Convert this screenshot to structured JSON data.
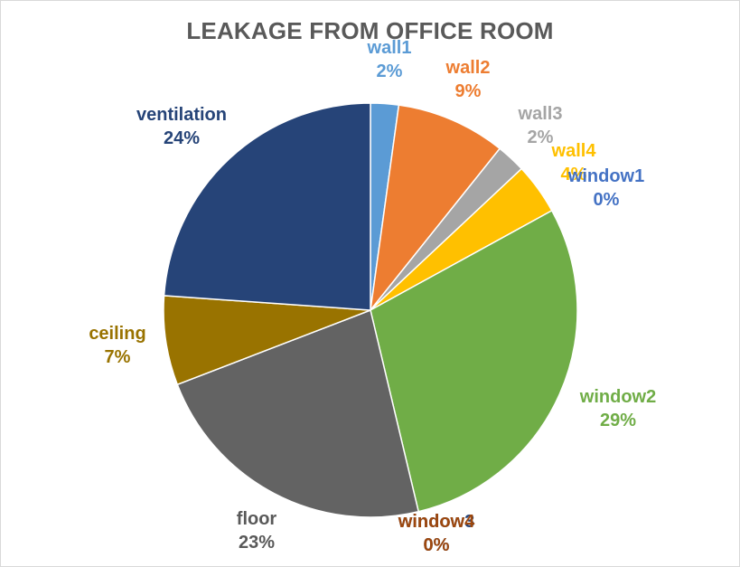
{
  "chart_data": {
    "type": "pie",
    "title": "LEAKAGE FROM OFFICE ROOM",
    "start_angle_deg": 0,
    "direction": "clockwise",
    "legend": "none",
    "slices": [
      {
        "name": "wall1",
        "value": 2.2,
        "label": "2%",
        "color": "#5B9BD5"
      },
      {
        "name": "wall2",
        "value": 8.6,
        "label": "9%",
        "color": "#ED7D31"
      },
      {
        "name": "wall3",
        "value": 2.3,
        "label": "2%",
        "color": "#A5A5A5"
      },
      {
        "name": "wall4",
        "value": 4.0,
        "label": "4%",
        "color": "#FFC000"
      },
      {
        "name": "window1",
        "value": 0.0,
        "label": "0%",
        "color": "#4472C4"
      },
      {
        "name": "window2",
        "value": 29.4,
        "label": "29%",
        "color": "#70AD47"
      },
      {
        "name": "window3",
        "value": 0.0,
        "label": "0%",
        "color": "#264478"
      },
      {
        "name": "window4",
        "value": 0.0,
        "label": "0%",
        "color": "#9E480E"
      },
      {
        "name": "floor",
        "value": 23.0,
        "label": "23%",
        "color": "#636363"
      },
      {
        "name": "ceiling",
        "value": 7.0,
        "label": "7%",
        "color": "#997300"
      },
      {
        "name": "ventilation",
        "value": 24.0,
        "label": "24%",
        "color": "#264478"
      }
    ]
  }
}
